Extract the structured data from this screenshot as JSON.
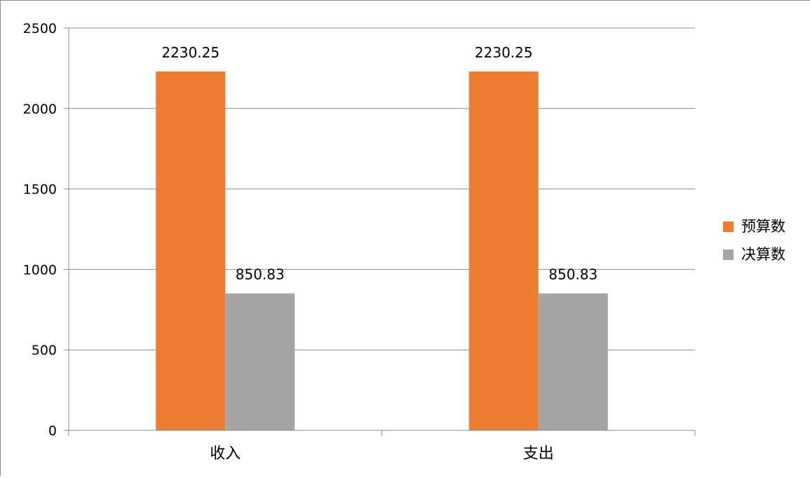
{
  "chart_data": {
    "type": "bar",
    "categories": [
      "收入",
      "支出"
    ],
    "series": [
      {
        "name": "预算数",
        "values": [
          2230.25,
          2230.25
        ],
        "color": "#ED7D31"
      },
      {
        "name": "决算数",
        "values": [
          850.83,
          850.83
        ],
        "color": "#A5A5A5"
      }
    ],
    "data_labels": [
      [
        "2230.25",
        "2230.25"
      ],
      [
        "850.83",
        "850.83"
      ]
    ],
    "ylim": [
      0,
      2500
    ],
    "yticks": [
      0,
      500,
      1000,
      1500,
      2000,
      2500
    ],
    "grid": true,
    "legend_position": "right",
    "gridline_color": "#8C8C8C",
    "axis_color": "#8C8C8C"
  }
}
